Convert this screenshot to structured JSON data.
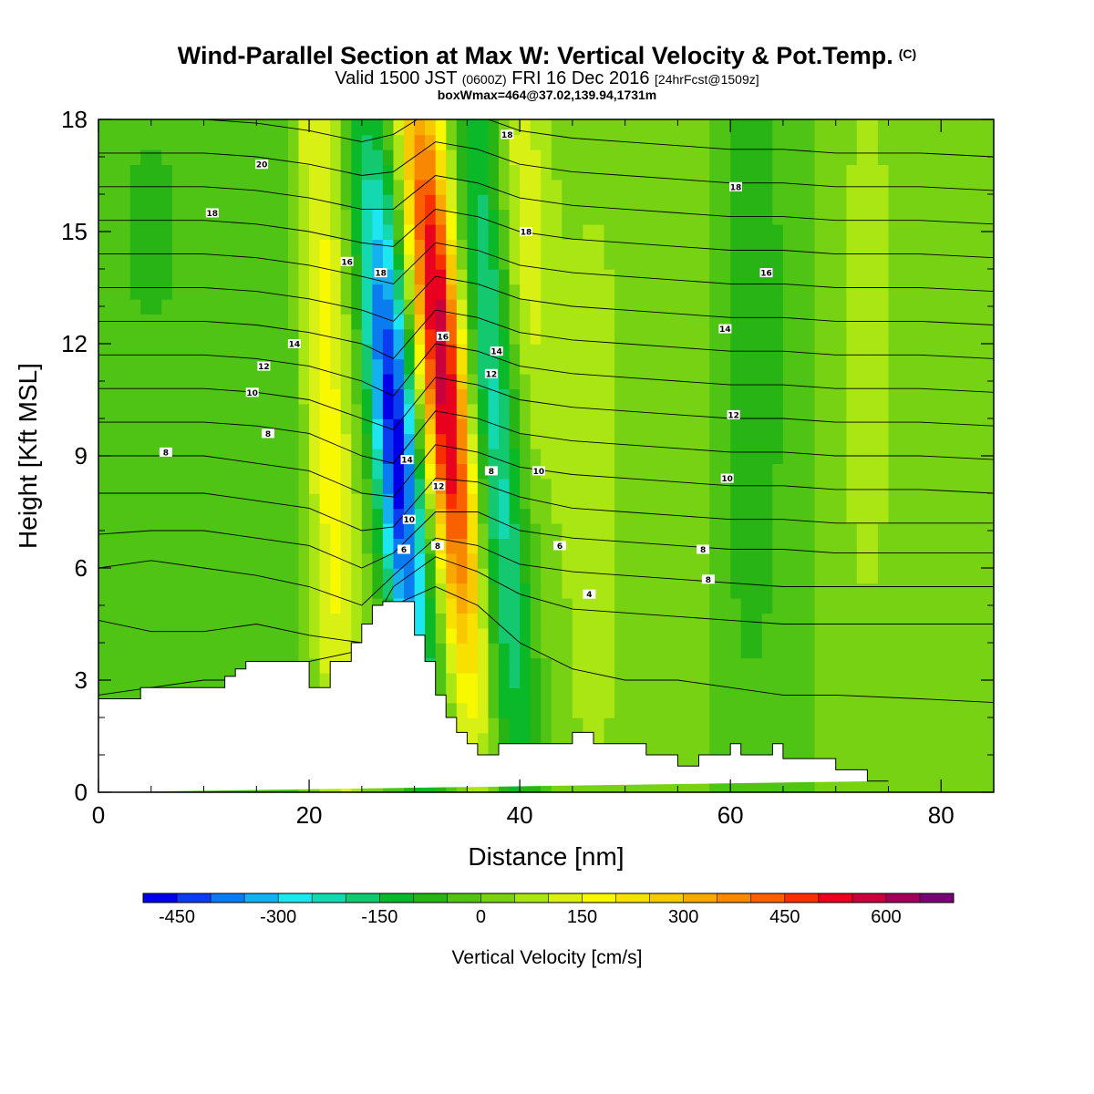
{
  "chart_data": {
    "type": "heatmap",
    "title": "Wind-Parallel Section at Max W: Vertical Velocity & Pot.Temp.",
    "title_mark": "(C)",
    "subtitle_main_a": "Valid 1500 JST",
    "subtitle_small_a": "(0600Z)",
    "subtitle_main_b": "FRI 16 Dec 2016",
    "subtitle_small_b": "[24hrFcst@1509z]",
    "subtitle2": "boxWmax=464@37.02,139.94,1731m",
    "xlabel": "Distance [nm]",
    "ylabel": "Height [Kft MSL]",
    "xlim": [
      0,
      85
    ],
    "ylim": [
      0,
      18
    ],
    "x_ticks": [
      "0",
      "20",
      "40",
      "60",
      "80"
    ],
    "y_ticks": [
      "0",
      "3",
      "6",
      "9",
      "12",
      "15",
      "18"
    ],
    "colorbar": {
      "title": "Vertical Velocity [cm/s]",
      "range": [
        -500,
        700
      ],
      "step": 50,
      "labels": [
        "-450",
        "-300",
        "-150",
        "0",
        "150",
        "300",
        "450",
        "600"
      ],
      "colors": [
        "#0000e8",
        "#0a3cf0",
        "#0a7cf0",
        "#14b0f0",
        "#1ee6f0",
        "#14d8b0",
        "#14c870",
        "#0ab828",
        "#28b414",
        "#50c414",
        "#78d214",
        "#aae614",
        "#d8f014",
        "#f8f800",
        "#f8e000",
        "#f8c800",
        "#f8a800",
        "#f88800",
        "#f86000",
        "#f83000",
        "#e8001e",
        "#c8003c",
        "#a0005a",
        "#780078"
      ]
    },
    "terrain_kft": {
      "x": [
        0,
        4,
        4,
        12,
        12,
        13,
        13,
        14,
        14,
        20,
        20,
        22,
        22,
        24,
        24,
        25,
        25,
        26,
        26,
        27,
        27,
        30,
        30,
        31,
        31,
        32,
        32,
        33,
        33,
        34,
        34,
        35,
        35,
        36,
        36,
        38,
        38,
        45,
        45,
        47,
        47,
        52,
        52,
        55,
        55,
        57,
        57,
        60,
        60,
        61,
        61,
        64,
        64,
        65,
        65,
        70,
        70,
        73,
        73,
        75,
        75,
        85
      ],
      "y": [
        2.5,
        2.5,
        2.8,
        2.8,
        3.1,
        3.1,
        3.3,
        3.3,
        3.5,
        3.5,
        2.8,
        2.8,
        3.5,
        3.5,
        4.0,
        4.0,
        4.5,
        4.5,
        5.0,
        5.0,
        5.1,
        5.1,
        4.2,
        4.2,
        3.5,
        3.5,
        2.6,
        2.6,
        2.0,
        2.0,
        1.6,
        1.6,
        1.3,
        1.3,
        1.0,
        1.0,
        1.3,
        1.3,
        1.6,
        1.6,
        1.3,
        1.3,
        1.0,
        1.0,
        0.7,
        0.7,
        1.0,
        1.0,
        1.3,
        1.3,
        1.0,
        1.0,
        1.3,
        1.3,
        0.9,
        0.9,
        0.6,
        0.6,
        0.3,
        0.3
      ]
    },
    "w_features": [
      {
        "x": 32.6,
        "y": 11.5,
        "sx": 1.6,
        "sy": 6,
        "tilt": -0.32,
        "amp": 600
      },
      {
        "x": 28.2,
        "y": 9.5,
        "sx": 1.6,
        "sy": 5.5,
        "tilt": -0.3,
        "amp": -480
      },
      {
        "x": 21.5,
        "y": 11,
        "sx": 1.8,
        "sy": 10,
        "tilt": -0.15,
        "amp": 200
      },
      {
        "x": 37.8,
        "y": 10,
        "sx": 1.8,
        "sy": 8,
        "tilt": -0.2,
        "amp": -250
      },
      {
        "x": 40,
        "y": 15,
        "sx": 2,
        "sy": 5,
        "tilt": -0.1,
        "amp": 150
      },
      {
        "x": 18,
        "y": 12,
        "sx": 3,
        "sy": 7,
        "tilt": -0.1,
        "amp": -60
      },
      {
        "x": 47,
        "y": 8,
        "sx": 3,
        "sy": 9,
        "tilt": 0,
        "amp": 70
      },
      {
        "x": 62,
        "y": 12,
        "sx": 2.5,
        "sy": 8,
        "tilt": 0,
        "amp": -90
      },
      {
        "x": 73,
        "y": 12,
        "sx": 2,
        "sy": 6,
        "tilt": 0,
        "amp": 90
      },
      {
        "x": 56,
        "y": 9,
        "sx": 2,
        "sy": 7,
        "tilt": 0,
        "amp": 40
      },
      {
        "x": 5,
        "y": 15,
        "sx": 4,
        "sy": 4,
        "tilt": 0,
        "amp": -60
      },
      {
        "x": 82,
        "y": 15,
        "sx": 3,
        "sy": 4,
        "tilt": 0,
        "amp": 50
      }
    ],
    "isentropes_kft": [
      [
        2.6,
        2.8,
        3.0,
        3.0,
        3.5,
        3.8,
        5.0,
        5.5,
        5.0,
        4.0,
        3.3,
        3.0,
        3.0,
        2.8,
        2.6,
        2.6,
        2.5,
        2.4
      ],
      [
        4.6,
        4.3,
        4.3,
        4.5,
        4.2,
        4.0,
        5.5,
        6.3,
        5.9,
        5.3,
        4.9,
        4.8,
        4.7,
        4.6,
        4.5,
        4.5,
        4.5,
        4.5
      ],
      [
        6.0,
        6.2,
        6.0,
        5.8,
        5.5,
        5.0,
        5.8,
        6.8,
        6.6,
        6.1,
        5.9,
        5.8,
        5.7,
        5.6,
        5.5,
        5.5,
        5.5,
        5.5
      ],
      [
        6.9,
        7.0,
        7.0,
        6.8,
        6.6,
        6.0,
        6.4,
        7.5,
        7.5,
        7.0,
        6.8,
        6.7,
        6.6,
        6.5,
        6.5,
        6.4,
        6.4,
        6.4
      ],
      [
        8.0,
        8.0,
        8.0,
        7.8,
        7.6,
        7.0,
        7.1,
        8.4,
        8.3,
        7.9,
        7.6,
        7.5,
        7.4,
        7.3,
        7.3,
        7.2,
        7.2,
        7.2
      ],
      [
        9.0,
        9.0,
        9.0,
        8.8,
        8.6,
        8.0,
        7.9,
        9.3,
        9.1,
        8.7,
        8.5,
        8.4,
        8.3,
        8.2,
        8.2,
        8.1,
        8.1,
        8.0
      ],
      [
        9.9,
        9.9,
        9.9,
        9.8,
        9.6,
        9.0,
        8.8,
        10.2,
        10.0,
        9.6,
        9.4,
        9.3,
        9.2,
        9.1,
        9.1,
        9.0,
        9.0,
        8.9
      ],
      [
        10.8,
        10.8,
        10.8,
        10.7,
        10.5,
        10.0,
        9.7,
        11.1,
        10.9,
        10.5,
        10.3,
        10.2,
        10.1,
        10.0,
        10.0,
        9.9,
        9.9,
        9.8
      ],
      [
        11.7,
        11.7,
        11.7,
        11.6,
        11.4,
        11.0,
        10.6,
        12.0,
        11.8,
        11.4,
        11.2,
        11.1,
        11.0,
        10.9,
        10.9,
        10.8,
        10.8,
        10.7
      ],
      [
        12.6,
        12.6,
        12.6,
        12.5,
        12.3,
        12.0,
        11.6,
        12.9,
        12.7,
        12.3,
        12.1,
        12.0,
        11.9,
        11.8,
        11.8,
        11.7,
        11.7,
        11.6
      ],
      [
        13.5,
        13.5,
        13.5,
        13.4,
        13.2,
        12.9,
        12.6,
        13.8,
        13.6,
        13.2,
        13.0,
        12.9,
        12.8,
        12.7,
        12.7,
        12.6,
        12.6,
        12.5
      ],
      [
        14.4,
        14.4,
        14.4,
        14.3,
        14.1,
        13.8,
        13.6,
        14.7,
        14.5,
        14.1,
        13.9,
        13.8,
        13.7,
        13.6,
        13.6,
        13.5,
        13.5,
        13.4
      ],
      [
        15.3,
        15.3,
        15.3,
        15.2,
        15.0,
        14.7,
        14.6,
        15.6,
        15.4,
        15.0,
        14.8,
        14.7,
        14.6,
        14.5,
        14.5,
        14.4,
        14.4,
        14.3
      ],
      [
        16.2,
        16.2,
        16.2,
        16.1,
        15.9,
        15.6,
        15.6,
        16.5,
        16.3,
        15.9,
        15.7,
        15.6,
        15.5,
        15.4,
        15.4,
        15.3,
        15.3,
        15.2
      ],
      [
        17.1,
        17.1,
        17.1,
        17.0,
        16.8,
        16.5,
        16.6,
        17.4,
        17.2,
        16.8,
        16.6,
        16.5,
        16.4,
        16.3,
        16.3,
        16.2,
        16.2,
        16.1
      ],
      [
        18.0,
        18.0,
        18.0,
        17.9,
        17.7,
        17.4,
        17.6,
        18.3,
        18.1,
        17.7,
        17.5,
        17.4,
        17.3,
        17.2,
        17.2,
        17.1,
        17.1,
        17.0
      ]
    ],
    "isentrope_x": [
      0,
      5,
      10,
      15,
      20,
      25,
      28,
      32,
      36,
      40,
      45,
      50,
      55,
      60,
      65,
      70,
      78,
      85
    ],
    "contour_labels": [
      {
        "text": "20",
        "x": 15.5,
        "y": 16.8
      },
      {
        "text": "18",
        "x": 10.8,
        "y": 15.5
      },
      {
        "text": "16",
        "x": 23.6,
        "y": 14.2
      },
      {
        "text": "18",
        "x": 26.8,
        "y": 13.9
      },
      {
        "text": "18",
        "x": 38.8,
        "y": 17.6
      },
      {
        "text": "18",
        "x": 40.6,
        "y": 15.0
      },
      {
        "text": "18",
        "x": 60.5,
        "y": 16.2
      },
      {
        "text": "16",
        "x": 63.4,
        "y": 13.9
      },
      {
        "text": "14",
        "x": 18.6,
        "y": 12.0
      },
      {
        "text": "16",
        "x": 32.7,
        "y": 12.2
      },
      {
        "text": "14",
        "x": 37.8,
        "y": 11.8
      },
      {
        "text": "12",
        "x": 37.3,
        "y": 11.2
      },
      {
        "text": "14",
        "x": 59.5,
        "y": 12.4
      },
      {
        "text": "12",
        "x": 15.7,
        "y": 11.4
      },
      {
        "text": "10",
        "x": 14.6,
        "y": 10.7
      },
      {
        "text": "8",
        "x": 16.1,
        "y": 9.6
      },
      {
        "text": "12",
        "x": 60.3,
        "y": 10.1
      },
      {
        "text": "8",
        "x": 6.4,
        "y": 9.1
      },
      {
        "text": "14",
        "x": 29.3,
        "y": 8.9
      },
      {
        "text": "12",
        "x": 32.3,
        "y": 8.2
      },
      {
        "text": "8",
        "x": 37.3,
        "y": 8.6
      },
      {
        "text": "10",
        "x": 41.8,
        "y": 8.6
      },
      {
        "text": "10",
        "x": 59.7,
        "y": 8.4
      },
      {
        "text": "10",
        "x": 29.5,
        "y": 7.3
      },
      {
        "text": "8",
        "x": 32.2,
        "y": 6.6
      },
      {
        "text": "6",
        "x": 29.0,
        "y": 6.5
      },
      {
        "text": "6",
        "x": 43.8,
        "y": 6.6
      },
      {
        "text": "8",
        "x": 57.4,
        "y": 6.5
      },
      {
        "text": "8",
        "x": 57.9,
        "y": 5.7
      },
      {
        "text": "4",
        "x": 46.6,
        "y": 5.3
      }
    ]
  }
}
